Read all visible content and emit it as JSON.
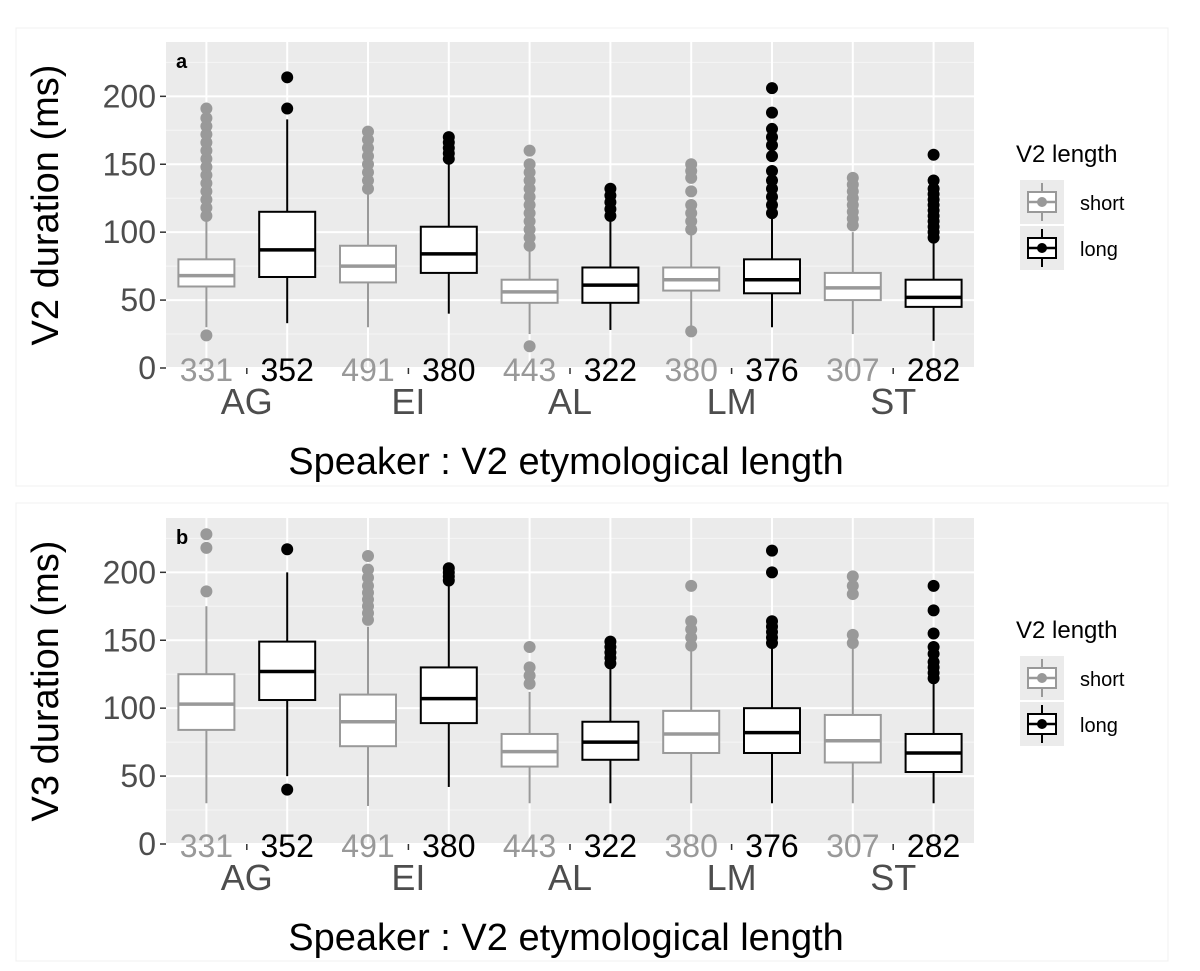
{
  "legend": {
    "title": "V2 length",
    "entries": [
      {
        "label": "short",
        "color": "#999999"
      },
      {
        "label": "long",
        "color": "#000000"
      }
    ]
  },
  "chart_data": [
    {
      "type": "box",
      "panel_label": "a",
      "ylabel": "V2 duration (ms)",
      "xlabel": "Speaker : V2 etymological length",
      "ylim": [
        0,
        240
      ],
      "yticks": [
        0,
        50,
        100,
        150,
        200
      ],
      "grid": true,
      "legend_position": "right",
      "speakers": [
        "AG",
        "EI",
        "AL",
        "LM",
        "ST"
      ],
      "boxes": [
        {
          "speaker": "AG",
          "length": "short",
          "n": 331,
          "min": 30,
          "q1": 60,
          "median": 68,
          "q3": 80,
          "max": 110,
          "outliers": [
            24,
            112,
            118,
            124,
            130,
            136,
            142,
            148,
            154,
            160,
            166,
            172,
            178,
            184,
            191
          ]
        },
        {
          "speaker": "AG",
          "length": "long",
          "n": 352,
          "min": 33,
          "q1": 67,
          "median": 87,
          "q3": 115,
          "max": 183,
          "outliers": [
            191,
            214
          ]
        },
        {
          "speaker": "EI",
          "length": "short",
          "n": 491,
          "min": 30,
          "q1": 63,
          "median": 75,
          "q3": 90,
          "max": 128,
          "outliers": [
            132,
            138,
            144,
            150,
            156,
            162,
            168,
            174
          ]
        },
        {
          "speaker": "EI",
          "length": "long",
          "n": 380,
          "min": 40,
          "q1": 70,
          "median": 84,
          "q3": 104,
          "max": 150,
          "outliers": [
            154,
            158,
            162,
            166,
            170
          ]
        },
        {
          "speaker": "AL",
          "length": "short",
          "n": 443,
          "min": 25,
          "q1": 48,
          "median": 56,
          "q3": 65,
          "max": 88,
          "outliers": [
            16,
            90,
            96,
            102,
            108,
            114,
            120,
            126,
            132,
            138,
            144,
            150,
            160
          ]
        },
        {
          "speaker": "AL",
          "length": "long",
          "n": 322,
          "min": 28,
          "q1": 48,
          "median": 61,
          "q3": 74,
          "max": 108,
          "outliers": [
            112,
            117,
            122,
            127,
            132
          ]
        },
        {
          "speaker": "LM",
          "length": "short",
          "n": 380,
          "min": 30,
          "q1": 57,
          "median": 65,
          "q3": 74,
          "max": 98,
          "outliers": [
            27,
            102,
            108,
            114,
            120,
            130,
            140,
            145,
            150
          ]
        },
        {
          "speaker": "LM",
          "length": "long",
          "n": 376,
          "min": 30,
          "q1": 55,
          "median": 65,
          "q3": 80,
          "max": 110,
          "outliers": [
            114,
            120,
            126,
            132,
            138,
            145,
            156,
            164,
            170,
            176,
            188,
            206
          ]
        },
        {
          "speaker": "ST",
          "length": "short",
          "n": 307,
          "min": 25,
          "q1": 50,
          "median": 59,
          "q3": 70,
          "max": 100,
          "outliers": [
            105,
            110,
            115,
            120,
            125,
            130,
            135,
            140
          ]
        },
        {
          "speaker": "ST",
          "length": "long",
          "n": 282,
          "min": 20,
          "q1": 45,
          "median": 52,
          "q3": 65,
          "max": 93,
          "outliers": [
            96,
            100,
            104,
            108,
            112,
            116,
            120,
            124,
            128,
            132,
            138,
            157
          ]
        }
      ]
    },
    {
      "type": "box",
      "panel_label": "b",
      "ylabel": "V3 duration (ms)",
      "xlabel": "Speaker : V2 etymological length",
      "ylim": [
        0,
        240
      ],
      "yticks": [
        0,
        50,
        100,
        150,
        200
      ],
      "grid": true,
      "legend_position": "right",
      "speakers": [
        "AG",
        "EI",
        "AL",
        "LM",
        "ST"
      ],
      "boxes": [
        {
          "speaker": "AG",
          "length": "short",
          "n": 331,
          "min": 30,
          "q1": 84,
          "median": 103,
          "q3": 125,
          "max": 175,
          "outliers": [
            186,
            218,
            228
          ]
        },
        {
          "speaker": "AG",
          "length": "long",
          "n": 352,
          "min": 50,
          "q1": 106,
          "median": 127,
          "q3": 149,
          "max": 200,
          "outliers": [
            40,
            217
          ]
        },
        {
          "speaker": "EI",
          "length": "short",
          "n": 491,
          "min": 28,
          "q1": 72,
          "median": 90,
          "q3": 110,
          "max": 160,
          "outliers": [
            165,
            170,
            175,
            180,
            185,
            190,
            196,
            202,
            212
          ]
        },
        {
          "speaker": "EI",
          "length": "long",
          "n": 380,
          "min": 42,
          "q1": 89,
          "median": 107,
          "q3": 130,
          "max": 190,
          "outliers": [
            194,
            197,
            200,
            203
          ]
        },
        {
          "speaker": "AL",
          "length": "short",
          "n": 443,
          "min": 30,
          "q1": 57,
          "median": 68,
          "q3": 81,
          "max": 112,
          "outliers": [
            118,
            124,
            130,
            145
          ]
        },
        {
          "speaker": "AL",
          "length": "long",
          "n": 322,
          "min": 30,
          "q1": 62,
          "median": 75,
          "q3": 90,
          "max": 130,
          "outliers": [
            133,
            137,
            141,
            145,
            149
          ]
        },
        {
          "speaker": "LM",
          "length": "short",
          "n": 380,
          "min": 30,
          "q1": 67,
          "median": 81,
          "q3": 98,
          "max": 142,
          "outliers": [
            146,
            152,
            158,
            164,
            190
          ]
        },
        {
          "speaker": "LM",
          "length": "long",
          "n": 376,
          "min": 30,
          "q1": 67,
          "median": 82,
          "q3": 100,
          "max": 145,
          "outliers": [
            148,
            152,
            156,
            160,
            164,
            200,
            216
          ]
        },
        {
          "speaker": "ST",
          "length": "short",
          "n": 307,
          "min": 30,
          "q1": 60,
          "median": 76,
          "q3": 95,
          "max": 145,
          "outliers": [
            148,
            154,
            184,
            190,
            197
          ]
        },
        {
          "speaker": "ST",
          "length": "long",
          "n": 282,
          "min": 30,
          "q1": 53,
          "median": 67,
          "q3": 81,
          "max": 118,
          "outliers": [
            122,
            126,
            130,
            134,
            140,
            145,
            155,
            172,
            190
          ]
        }
      ]
    }
  ]
}
